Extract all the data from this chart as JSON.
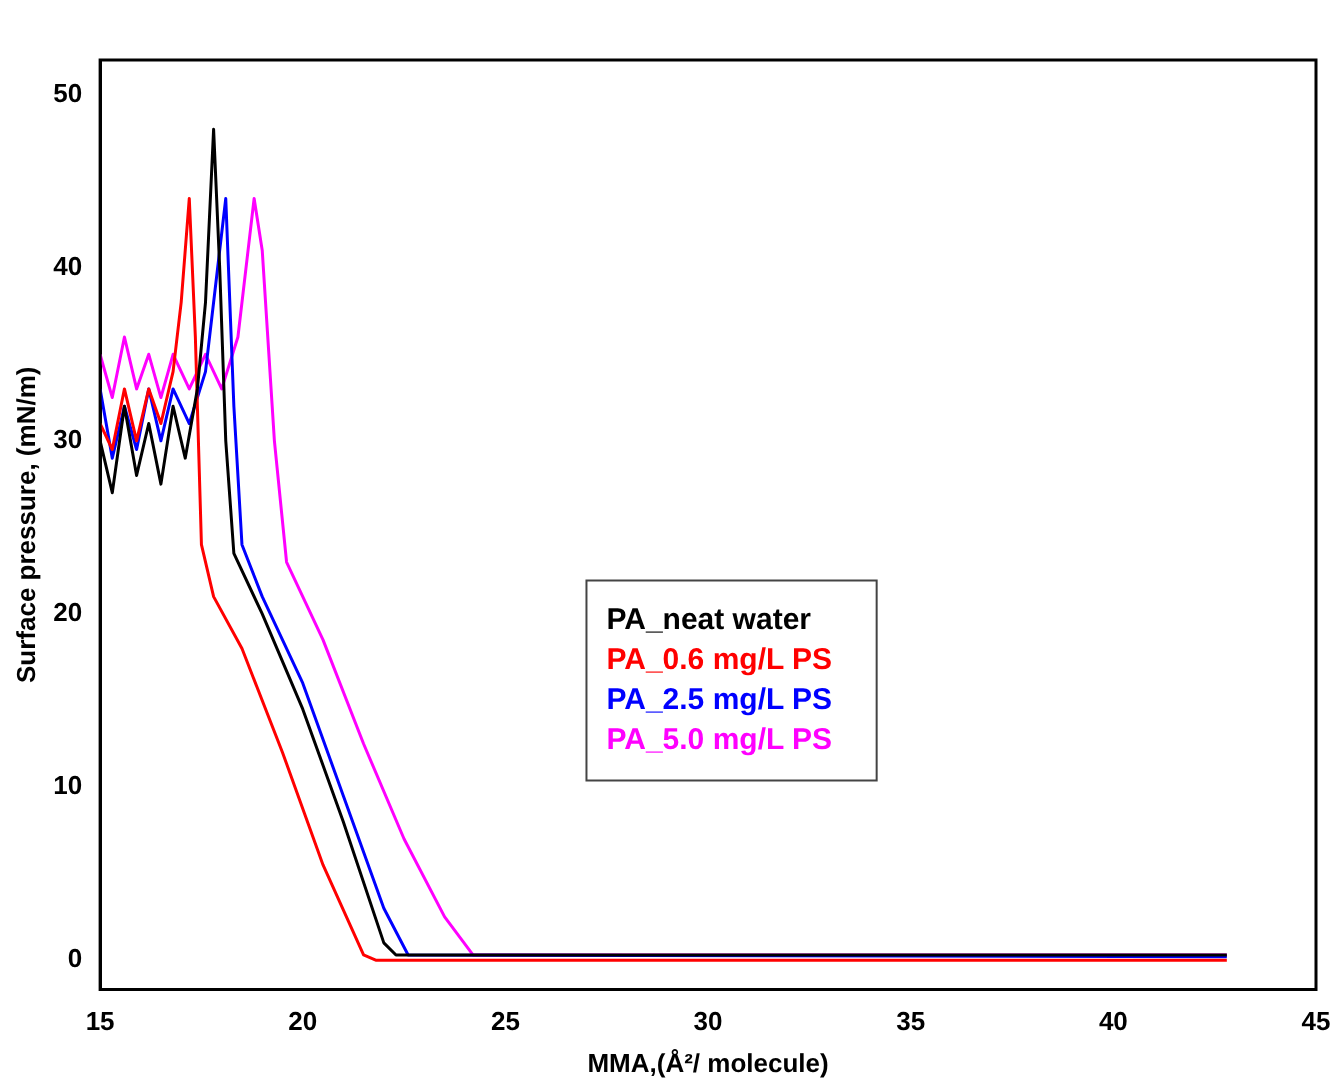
{
  "chart_data": {
    "type": "line",
    "xlabel": "MMA,(Å²/ molecule)",
    "ylabel": "Surface pressure, (mN/m)",
    "xlim": [
      15,
      45
    ],
    "ylim": [
      -1.7,
      52
    ],
    "xticks": [
      15,
      20,
      25,
      30,
      35,
      40,
      45
    ],
    "yticks": [
      0,
      10,
      20,
      30,
      40,
      50
    ],
    "grid": false,
    "legend": "right",
    "marker": "none",
    "line_style": "solid",
    "series": [
      {
        "name": "PA_neat water",
        "color": "#000000",
        "x": [
          15,
          15.3,
          15.6,
          15.9,
          16.2,
          16.5,
          16.8,
          17.1,
          17.4,
          17.6,
          17.8,
          17.95,
          18.1,
          18.3,
          19,
          20,
          21,
          22,
          22.3,
          30,
          42.8
        ],
        "values": [
          30,
          27,
          32,
          28,
          31,
          27.5,
          32,
          29,
          33,
          38,
          48,
          40,
          30,
          23.5,
          20,
          14.5,
          8,
          1,
          0.3,
          0.3,
          0.3
        ]
      },
      {
        "name": "PA_0.6 mg/L PS",
        "color": "#ff0000",
        "x": [
          15,
          15.3,
          15.6,
          15.9,
          16.2,
          16.5,
          16.8,
          17,
          17.2,
          17.35,
          17.5,
          17.8,
          18.5,
          19.5,
          20.5,
          21.5,
          21.8,
          42.8
        ],
        "values": [
          31,
          29.5,
          33,
          30,
          33,
          31,
          34,
          38,
          44,
          36,
          24,
          21,
          18,
          12,
          5.5,
          0.3,
          0,
          0
        ]
      },
      {
        "name": "PA_2.5 mg/L PS",
        "color": "#0000ff",
        "x": [
          15,
          15.3,
          15.6,
          15.9,
          16.2,
          16.5,
          16.8,
          17.2,
          17.6,
          17.9,
          18.1,
          18.3,
          18.5,
          19,
          20,
          21,
          22,
          22.6,
          42.8
        ],
        "values": [
          33,
          29,
          32,
          29.5,
          33,
          30,
          33,
          31,
          34,
          40,
          44,
          32,
          24,
          21,
          16,
          9.5,
          3,
          0.3,
          0.2
        ]
      },
      {
        "name": "PA_5.0 mg/L PS",
        "color": "#ff00ff",
        "x": [
          15,
          15.3,
          15.6,
          15.9,
          16.2,
          16.5,
          16.8,
          17.2,
          17.6,
          18,
          18.4,
          18.8,
          19,
          19.3,
          19.6,
          20.5,
          21.5,
          22.5,
          23.5,
          24.2,
          42.8
        ],
        "values": [
          35,
          32.5,
          36,
          33,
          35,
          32.5,
          35,
          33,
          35,
          33,
          36,
          44,
          41,
          30,
          23,
          18.5,
          12.5,
          7,
          2.5,
          0.3,
          0.3
        ]
      }
    ]
  }
}
